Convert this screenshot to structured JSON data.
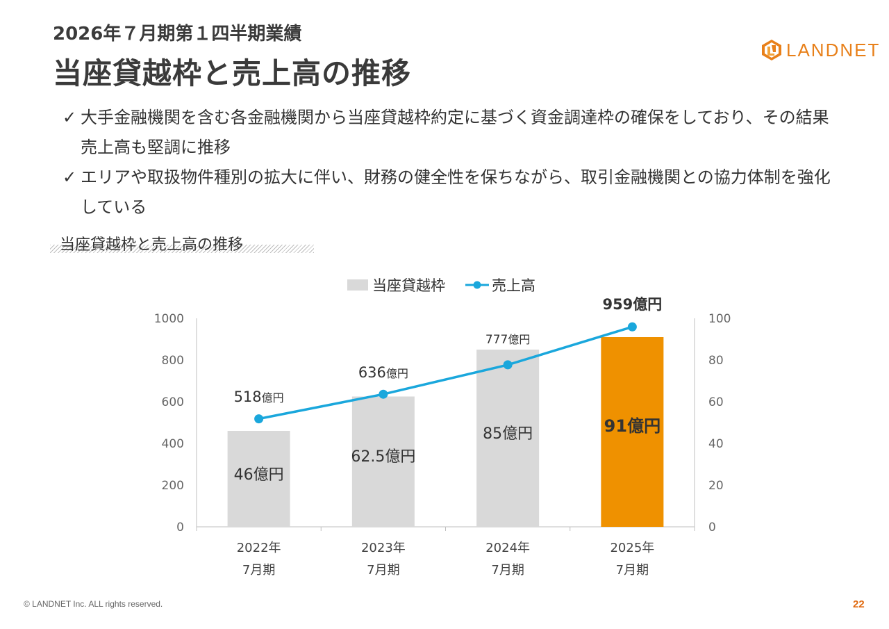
{
  "header": {
    "subtitle": "2026年７月期第１四半期業績",
    "title": "当座貸越枠と売上高の推移"
  },
  "logo": {
    "text": "LANDNET",
    "icon": "landnet-ln-logo-icon",
    "color": "#e8801a"
  },
  "bullets": [
    {
      "icon": "check-icon",
      "mark": "✓",
      "text": "大手金融機関を含む各金融機関から当座貸越枠約定に基づく資金調達枠の確保をしており、その結果売上高も堅調に推移"
    },
    {
      "icon": "check-icon",
      "mark": "✓",
      "text": "エリアや取扱物件種別の拡大に伴い、財務の健全性を保ちながら、取引金融機関との協力体制を強化している"
    }
  ],
  "section_label": "当座貸越枠と売上高の推移",
  "chart_data": {
    "type": "bar+line",
    "title": "",
    "legend": [
      "当座貸越枠",
      "売上高"
    ],
    "categories": [
      [
        "2022年",
        "7月期"
      ],
      [
        "2023年",
        "7月期"
      ],
      [
        "2024年",
        "7月期"
      ],
      [
        "2025年",
        "7月期"
      ]
    ],
    "series": [
      {
        "name": "当座貸越枠",
        "type": "bar",
        "axis": "right",
        "values": [
          46,
          62.5,
          85,
          91
        ],
        "labels": [
          [
            "46",
            "億円"
          ],
          [
            "62.5",
            "億円"
          ],
          [
            "85",
            "億円"
          ],
          [
            "91",
            "億円"
          ]
        ],
        "colors": [
          "#d9d9d9",
          "#d9d9d9",
          "#d9d9d9",
          "#ef9100"
        ]
      },
      {
        "name": "売上高",
        "type": "line",
        "axis": "left",
        "values": [
          518,
          636,
          777,
          959
        ],
        "labels": [
          [
            "518",
            "億円"
          ],
          [
            "636",
            "億円"
          ],
          [
            "777",
            "億円"
          ],
          [
            "959",
            "億円"
          ]
        ],
        "color": "#1aa7dc"
      }
    ],
    "left_axis": {
      "min": 0,
      "max": 1000,
      "ticks": [
        "0",
        "200",
        "400",
        "600",
        "800",
        "1000"
      ]
    },
    "right_axis": {
      "min": 0,
      "max": 100,
      "ticks": [
        "0",
        "20",
        "40",
        "60",
        "80",
        "100"
      ]
    },
    "grid": false,
    "legend_position": "top"
  },
  "footer": {
    "copyright": "© LANDNET Inc. ALL rights reserved.",
    "page_number": "22"
  }
}
